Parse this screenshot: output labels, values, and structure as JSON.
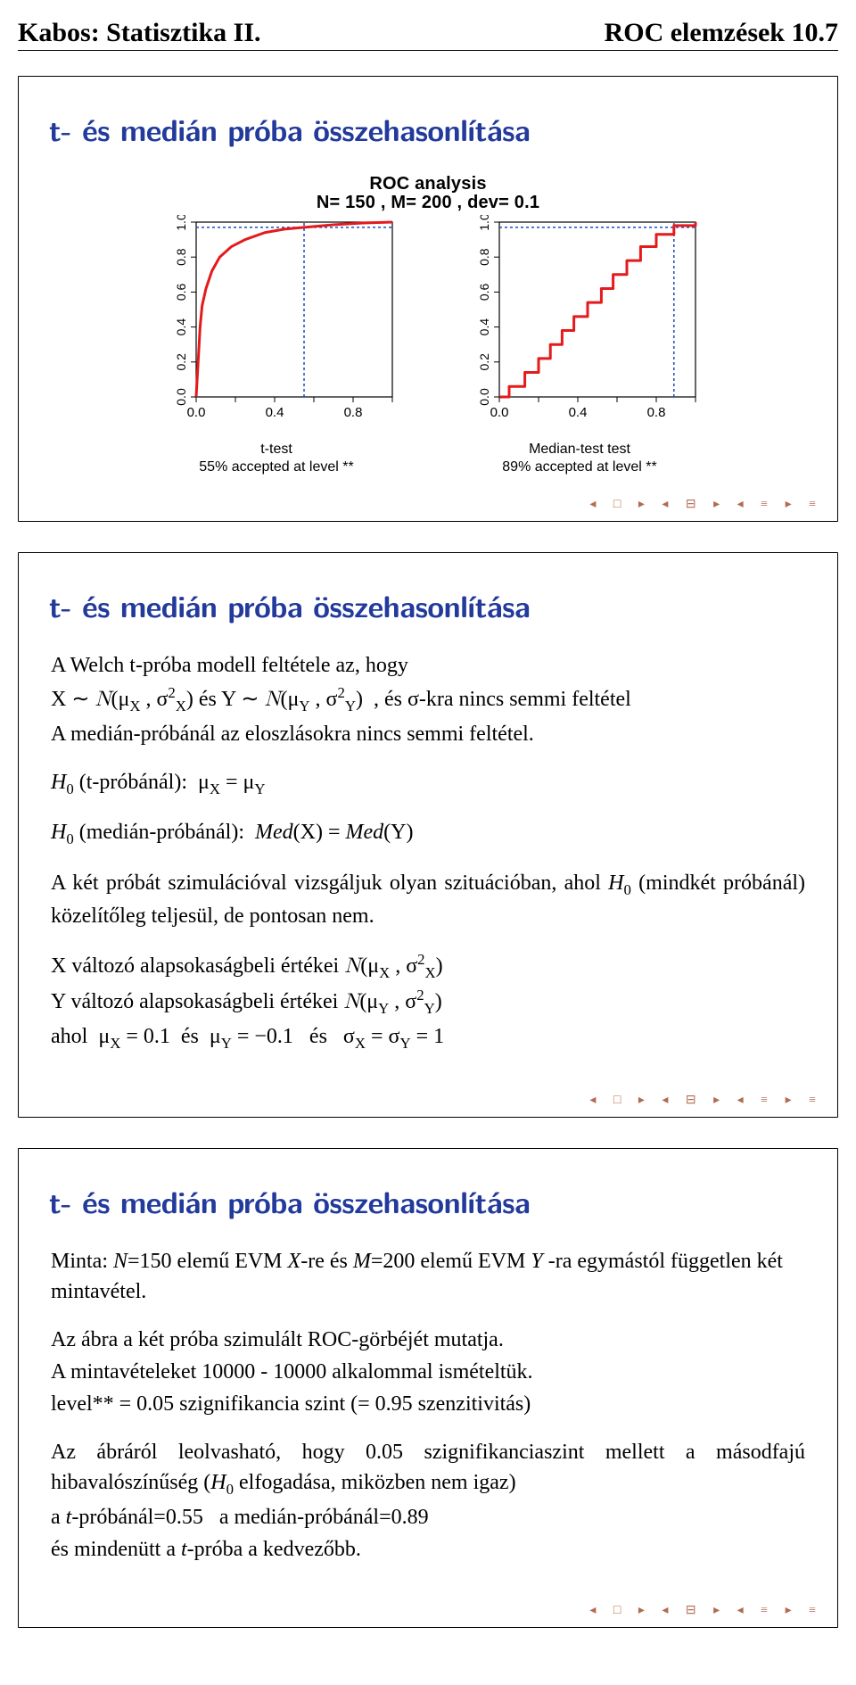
{
  "header": {
    "left": "Kabos: Statisztika II.",
    "right": "ROC elemzések 10.7"
  },
  "slide1": {
    "title": "t- és medián próba összehasonlítása",
    "chart_title_line1": "ROC analysis",
    "chart_title_line2": "N= 150  ,  M= 200  ,  dev= 0.1",
    "chart_left": {
      "type": "roc",
      "line_color": "#e41a1c",
      "line_width": 3,
      "background_color": "#ffffff",
      "axis_color": "#000000",
      "grid_color": "#1a4cc0",
      "grid_dash": "3 3",
      "xlim": [
        0,
        1
      ],
      "ylim": [
        0,
        1
      ],
      "xticks": [
        0.0,
        0.2,
        0.4,
        0.6,
        0.8,
        1.0
      ],
      "xtick_labels": [
        "0.0",
        "",
        "0.4",
        "",
        "0.8",
        ""
      ],
      "yticks": [
        0.0,
        0.2,
        0.4,
        0.6,
        0.8,
        1.0
      ],
      "ytick_labels": [
        "0.0",
        "0.2",
        "0.4",
        "0.6",
        "0.8",
        "1.0"
      ],
      "vline_at": 0.55,
      "curve": [
        [
          0.0,
          0.0
        ],
        [
          0.01,
          0.2
        ],
        [
          0.02,
          0.4
        ],
        [
          0.03,
          0.52
        ],
        [
          0.05,
          0.62
        ],
        [
          0.08,
          0.72
        ],
        [
          0.12,
          0.8
        ],
        [
          0.18,
          0.86
        ],
        [
          0.25,
          0.9
        ],
        [
          0.35,
          0.94
        ],
        [
          0.45,
          0.96
        ],
        [
          0.55,
          0.97
        ],
        [
          0.7,
          0.985
        ],
        [
          0.85,
          0.995
        ],
        [
          1.0,
          1.0
        ]
      ],
      "caption_line1": "t-test",
      "caption_line2": "55% accepted at level **"
    },
    "chart_right": {
      "type": "roc-step",
      "line_color": "#e41a1c",
      "line_width": 3,
      "background_color": "#ffffff",
      "axis_color": "#000000",
      "grid_color": "#1a4cc0",
      "grid_dash": "3 3",
      "xlim": [
        0,
        1
      ],
      "ylim": [
        0,
        1
      ],
      "xticks": [
        0.0,
        0.2,
        0.4,
        0.6,
        0.8,
        1.0
      ],
      "xtick_labels": [
        "0.0",
        "",
        "0.4",
        "",
        "0.8",
        ""
      ],
      "yticks": [
        0.0,
        0.2,
        0.4,
        0.6,
        0.8,
        1.0
      ],
      "ytick_labels": [
        "0.0",
        "0.2",
        "0.4",
        "0.6",
        "0.8",
        "1.0"
      ],
      "vline_at": 0.89,
      "curve": [
        [
          0.0,
          0.0
        ],
        [
          0.05,
          0.0
        ],
        [
          0.05,
          0.06
        ],
        [
          0.13,
          0.06
        ],
        [
          0.13,
          0.14
        ],
        [
          0.2,
          0.14
        ],
        [
          0.2,
          0.22
        ],
        [
          0.26,
          0.22
        ],
        [
          0.26,
          0.3
        ],
        [
          0.32,
          0.3
        ],
        [
          0.32,
          0.38
        ],
        [
          0.38,
          0.38
        ],
        [
          0.38,
          0.46
        ],
        [
          0.45,
          0.46
        ],
        [
          0.45,
          0.54
        ],
        [
          0.52,
          0.54
        ],
        [
          0.52,
          0.62
        ],
        [
          0.58,
          0.62
        ],
        [
          0.58,
          0.7
        ],
        [
          0.65,
          0.7
        ],
        [
          0.65,
          0.78
        ],
        [
          0.72,
          0.78
        ],
        [
          0.72,
          0.86
        ],
        [
          0.8,
          0.86
        ],
        [
          0.8,
          0.93
        ],
        [
          0.89,
          0.93
        ],
        [
          0.89,
          0.98
        ],
        [
          1.0,
          0.98
        ],
        [
          1.0,
          1.0
        ]
      ],
      "caption_line1": "Median-test test",
      "caption_line2": "89% accepted at level **"
    }
  },
  "slide2": {
    "title": "t- és medián próba összehasonlítása",
    "p1a": "A Welch t-próba modell feltétele az, hogy",
    "p1b": "X ∼ 𝒩(μ_X , σ²_X) és Y ∼ 𝒩(μ_Y , σ²_Y)  , és σ-kra nincs semmi feltétel",
    "p1c": "A medián-próbánál az eloszlásokra nincs semmi feltétel.",
    "p2": "H₀ (t-próbánál):  μ_X = μ_Y",
    "p3": "H₀ (medián-próbánál):  Med(X) = Med(Y)",
    "p4": "A két próbát szimulációval vizsgáljuk olyan szituációban, ahol H₀ (mindkét próbánál) közelítőleg teljesül, de pontosan nem.",
    "p5a": "X változó alapsokaságbeli értékei 𝒩(μ_X , σ²_X)",
    "p5b": "Y változó alapsokaságbeli értékei 𝒩(μ_Y , σ²_Y)",
    "p5c": "ahol  μ_X = 0.1  és  μ_Y = −0.1   és   σ_X = σ_Y = 1"
  },
  "slide3": {
    "title": "t- és medián próba összehasonlítása",
    "p1": "Minta: N=150 elemű EVM X-re és M=200 elemű EVM Y -ra egymástól független két mintavétel.",
    "p2a": "Az ábra a két próba szimulált ROC-görbéjét mutatja.",
    "p2b": "A mintavételeket 10000 - 10000 alkalommal ismételtük.",
    "p2c": "level** = 0.05 szignifikancia szint (= 0.95 szenzitivitás)",
    "p3a": "Az ábráról leolvasható, hogy 0.05 szignifikanciaszint mellett a másodfajú hibavalószínűség (H₀ elfogadása, miközben nem igaz)",
    "p3b": "a t-próbánál=0.55   a medián-próbánál=0.89",
    "p3c": "és mindenütt a t-próba a kedvezőbb."
  },
  "footer": {
    "glyphs": "◂ □ ▸  ◂ ⊟ ▸  ◂ ≡ ▸  ≡"
  }
}
